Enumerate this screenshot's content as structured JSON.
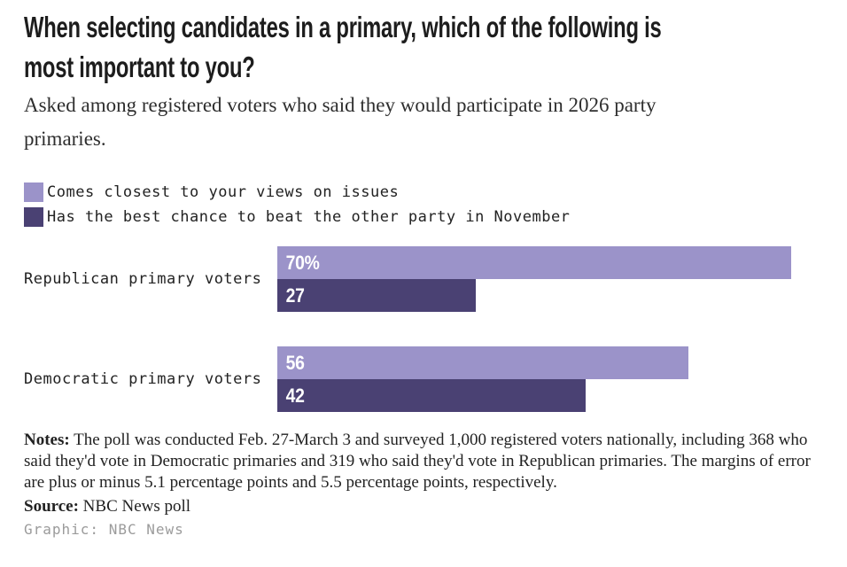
{
  "header": {
    "title_lines": [
      "When selecting candidates in a primary, which of the following is",
      "most important to you?"
    ],
    "subtitle_lines": [
      "Asked among registered voters who said they would participate in 2026 party",
      "primaries."
    ]
  },
  "chart_data": {
    "type": "bar",
    "orientation": "horizontal",
    "title": "When selecting candidates in a primary, which of the following is most important to you?",
    "subtitle": "Asked among registered voters who said they would participate in 2026 party primaries.",
    "categories": [
      "Republican primary voters",
      "Democratic primary voters"
    ],
    "series": [
      {
        "name": "Comes closest to your views on issues",
        "color": "#9b93c9",
        "values": [
          70,
          56
        ]
      },
      {
        "name": "Has the best chance to beat the other party in November",
        "color": "#4a4173",
        "values": [
          27,
          42
        ]
      }
    ],
    "value_labels": [
      [
        "70%",
        "27"
      ],
      [
        "56",
        "42"
      ]
    ],
    "unit": "percent",
    "xlim": [
      0,
      70
    ],
    "grid": false,
    "legend_position": "top-left",
    "value_label_color": "#ffffff",
    "text_color": "#222222"
  },
  "footer": {
    "notes_label": "Notes:",
    "notes_text": " The poll was conducted Feb. 27-March 3 and surveyed 1,000 registered voters nationally, including 368 who said they'd vote in Democratic primaries and 319 who said they'd vote in Republican primaries. The margins of error are plus or minus 5.1 percentage points and 5.5 percentage points, respectively.",
    "source_label": "Source:",
    "source_text": " NBC News poll",
    "credit": "Graphic: NBC News"
  }
}
